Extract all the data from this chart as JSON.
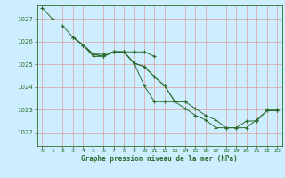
{
  "title": "",
  "xlabel": "Graphe pression niveau de la mer (hPa)",
  "ylabel": "",
  "background_color": "#cceeff",
  "grid_color": "#ddaaaa",
  "line_color": "#2d6b2d",
  "xlim": [
    -0.5,
    23.5
  ],
  "ylim": [
    1021.4,
    1027.6
  ],
  "yticks": [
    1022,
    1023,
    1024,
    1025,
    1026,
    1027
  ],
  "xticks": [
    0,
    1,
    2,
    3,
    4,
    5,
    6,
    7,
    8,
    9,
    10,
    11,
    12,
    13,
    14,
    15,
    16,
    17,
    18,
    19,
    20,
    21,
    22,
    23
  ],
  "series": [
    [
      1027.5,
      1027.0,
      null,
      1026.2,
      1025.85,
      1025.45,
      1025.35,
      1025.55,
      1025.55,
      1025.55,
      1025.55,
      1025.35,
      null,
      null,
      null,
      null,
      null,
      null,
      null,
      null,
      null,
      null,
      1023.0,
      1023.0
    ],
    [
      null,
      null,
      1026.7,
      1026.2,
      1025.85,
      1025.45,
      1025.35,
      1025.55,
      1025.55,
      1025.05,
      1024.9,
      1024.45,
      1024.05,
      1023.35,
      1023.35,
      null,
      null,
      null,
      null,
      null,
      null,
      null,
      null,
      null
    ],
    [
      null,
      null,
      null,
      1026.2,
      1025.85,
      1025.45,
      1025.45,
      1025.55,
      1025.55,
      1025.05,
      1024.9,
      1024.45,
      1024.05,
      1023.35,
      1023.35,
      1023.05,
      1022.75,
      1022.55,
      1022.2,
      1022.2,
      1022.2,
      1022.55,
      1022.95,
      1022.95
    ],
    [
      null,
      null,
      null,
      1026.2,
      1025.85,
      1025.35,
      1025.35,
      1025.55,
      1025.55,
      1025.05,
      1024.05,
      1023.35,
      1023.35,
      1023.35,
      1023.05,
      1022.75,
      1022.55,
      1022.2,
      1022.2,
      1022.2,
      1022.5,
      1022.5,
      1022.95,
      1022.95
    ]
  ]
}
